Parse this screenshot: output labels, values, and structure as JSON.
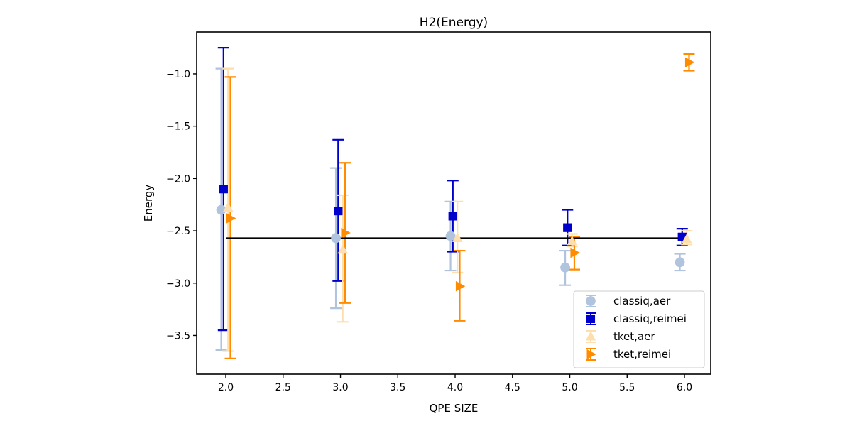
{
  "chart_data": {
    "type": "scatter",
    "subtype": "errorbar",
    "title": "H2(Energy)",
    "xlabel": "QPE SIZE",
    "ylabel": "Energy",
    "xlim": [
      1.746,
      6.229
    ],
    "ylim": [
      -3.87,
      -0.6
    ],
    "xticks": [
      2.0,
      2.5,
      3.0,
      3.5,
      4.0,
      4.5,
      5.0,
      5.5,
      6.0
    ],
    "xtick_labels": [
      "2.0",
      "2.5",
      "3.0",
      "3.5",
      "4.0",
      "4.5",
      "5.0",
      "5.5",
      "6.0"
    ],
    "yticks": [
      -1.0,
      -1.5,
      -2.0,
      -2.5,
      -3.0,
      -3.5
    ],
    "ytick_labels": [
      "−1.0",
      "−1.5",
      "−2.0",
      "−2.5",
      "−3.0",
      "−3.5"
    ],
    "grid": false,
    "legend_position": "lower-right",
    "reference_line": {
      "y": -2.57,
      "x_range": [
        2.0,
        6.0
      ],
      "color": "#000000"
    },
    "series": [
      {
        "name": "classiq,aer",
        "marker": "circle",
        "color": "#b0c4de",
        "x": [
          1.96,
          2.96,
          3.96,
          4.96,
          5.96
        ],
        "y": [
          -2.3,
          -2.57,
          -2.55,
          -2.85,
          -2.8
        ],
        "yerr_low": [
          -3.64,
          -3.24,
          -2.88,
          -3.02,
          -2.88
        ],
        "yerr_high": [
          -0.95,
          -1.9,
          -2.22,
          -2.69,
          -2.72
        ]
      },
      {
        "name": "classiq,reimei",
        "marker": "square",
        "color": "#0000cd",
        "x": [
          1.98,
          2.98,
          3.98,
          4.98,
          5.98
        ],
        "y": [
          -2.1,
          -2.31,
          -2.36,
          -2.47,
          -2.56
        ],
        "yerr_low": [
          -3.45,
          -2.98,
          -2.7,
          -2.64,
          -2.64
        ],
        "yerr_high": [
          -0.75,
          -1.63,
          -2.02,
          -2.3,
          -2.48
        ]
      },
      {
        "name": "tket,aer",
        "marker": "triangle-up",
        "color": "#ffdead",
        "x": [
          2.02,
          3.02,
          4.02,
          5.02,
          6.02
        ],
        "y": [
          -2.28,
          -2.68,
          -2.57,
          -2.6,
          -2.58
        ],
        "yerr_low": [
          -3.65,
          -3.37,
          -2.9,
          -2.65,
          -2.63
        ],
        "yerr_high": [
          -0.95,
          -2.16,
          -2.22,
          -2.53,
          -2.5
        ]
      },
      {
        "name": "tket,reimei",
        "marker": "triangle-right",
        "color": "#ff8c00",
        "x": [
          2.04,
          3.04,
          4.04,
          5.04,
          6.04
        ],
        "y": [
          -2.38,
          -2.52,
          -3.03,
          -2.71,
          -0.89
        ],
        "yerr_low": [
          -3.72,
          -3.19,
          -3.36,
          -2.87,
          -0.97
        ],
        "yerr_high": [
          -1.03,
          -1.85,
          -2.69,
          -2.56,
          -0.81
        ]
      }
    ]
  }
}
